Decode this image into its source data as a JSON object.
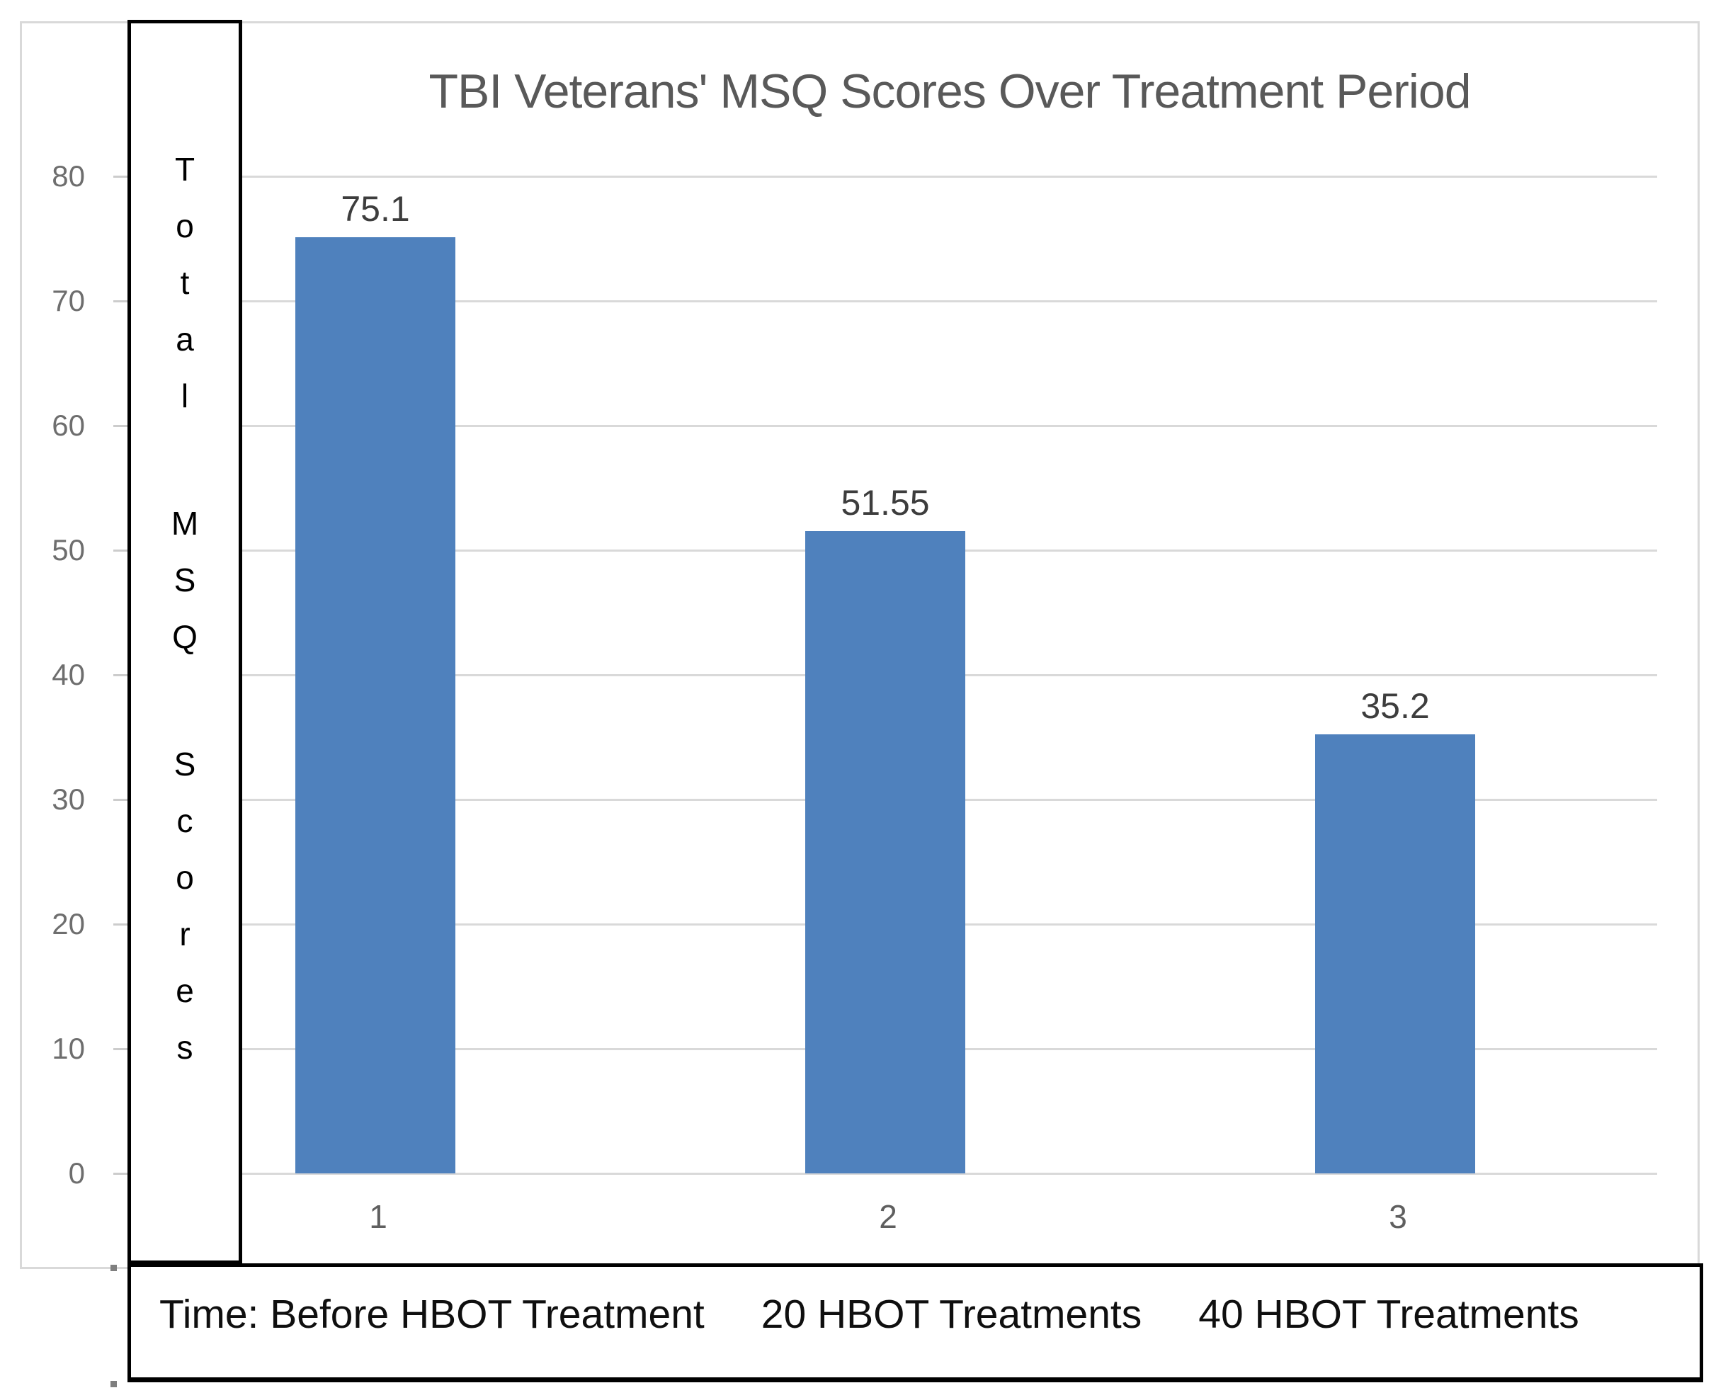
{
  "chart_data": {
    "type": "bar",
    "title": "TBI Veterans' MSQ Scores Over Treatment Period",
    "categories": [
      "1",
      "2",
      "3"
    ],
    "values": [
      75.1,
      51.55,
      35.2
    ],
    "data_labels": [
      "75.1",
      "51.55",
      "35.2"
    ],
    "ylabel": "Total MSQ Scores",
    "ylabel_words": [
      "Total",
      "MSQ",
      "Scores"
    ],
    "xlabel_segments": [
      "Time: Before HBOT Treatment",
      "20 HBOT Treatments",
      "40 HBOT Treatments"
    ],
    "yticks": [
      80,
      70,
      60,
      50,
      40,
      30,
      20,
      10,
      0
    ],
    "ylim": [
      0,
      80
    ],
    "grid": true,
    "legend_position": "none",
    "series": [
      {
        "name": "Total MSQ Scores",
        "values": [
          75.1,
          51.55,
          35.2
        ]
      }
    ]
  },
  "colors": {
    "bar_fill": "#4f81bd",
    "gridline": "#d9d9d9",
    "outer_border": "#d9d9d9",
    "title_text": "#595959",
    "axis_tick_text": "#6e6e6e",
    "category_text": "#5f5f5f",
    "data_label_text": "#3d3d3d",
    "overlay_box_border": "#000000",
    "overlay_text": "#0f0f0f",
    "background": "#ffffff"
  }
}
